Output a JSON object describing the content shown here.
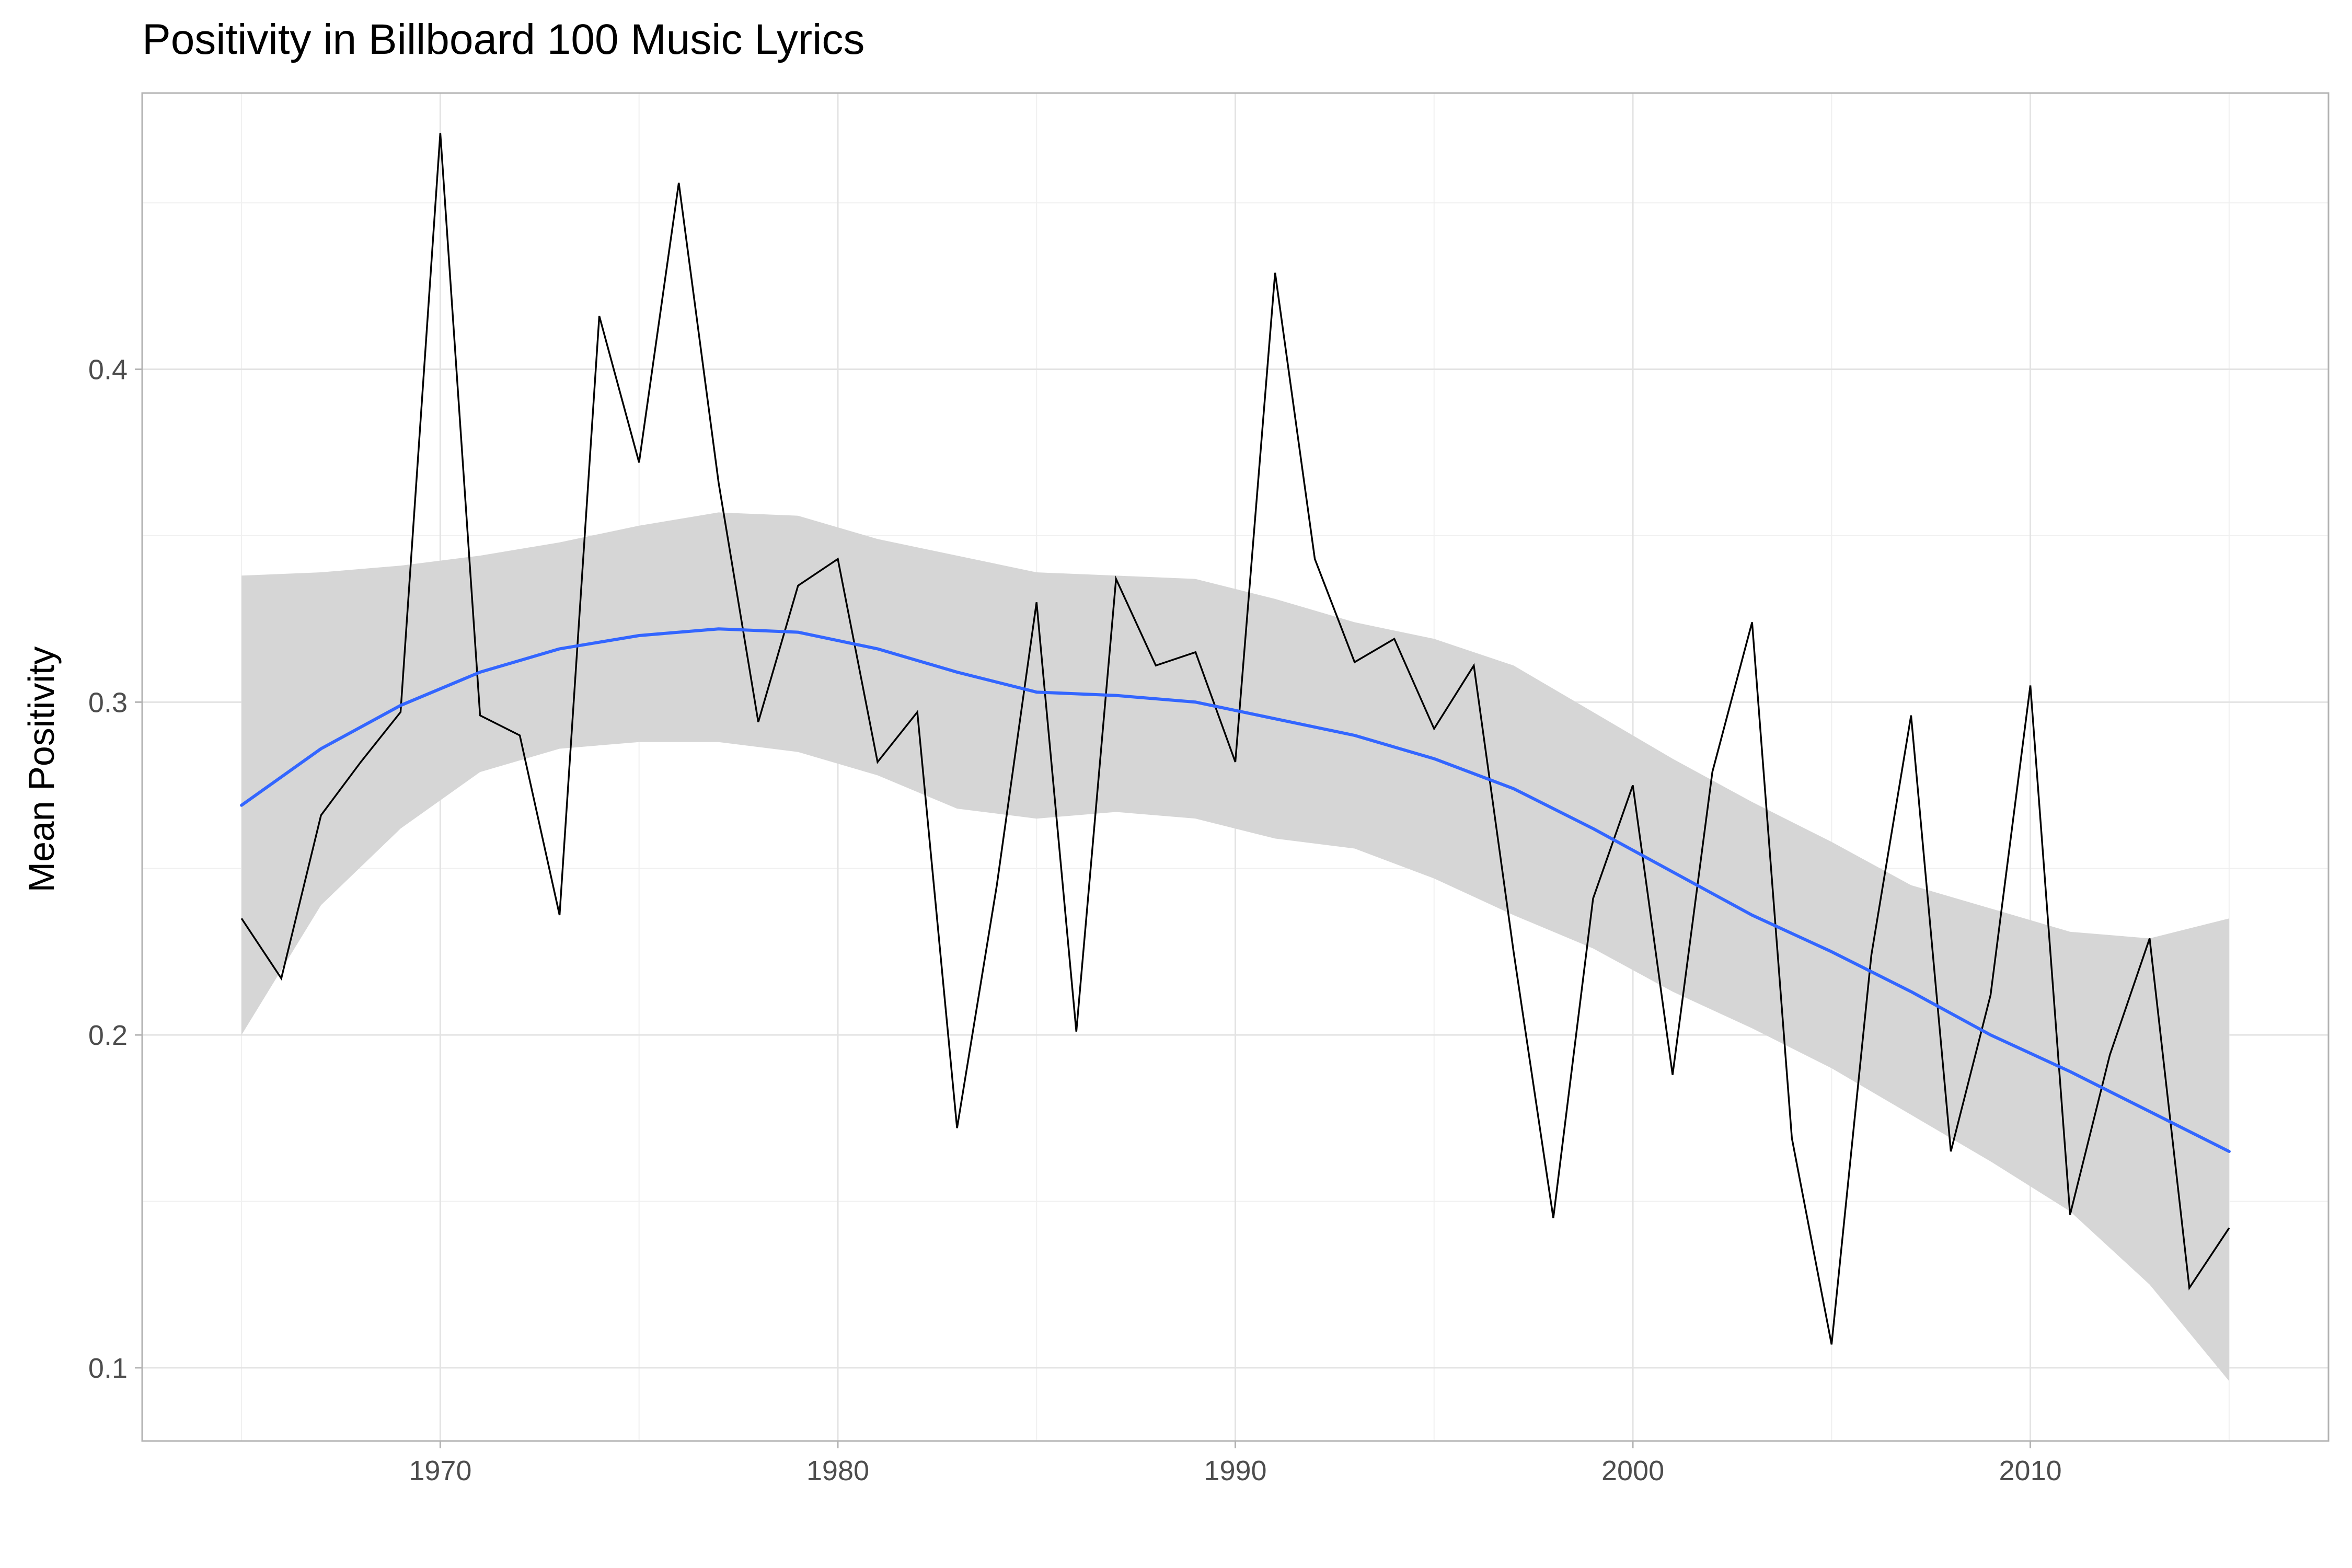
{
  "chart_data": {
    "type": "line",
    "title": "Positivity in Billboard 100 Music Lyrics",
    "xlabel": "",
    "ylabel": "Mean Positivity",
    "xlim": [
      1962.5,
      2017.5
    ],
    "ylim": [
      0.078,
      0.483
    ],
    "x_ticks": [
      1970,
      1980,
      1990,
      2000,
      2010
    ],
    "y_ticks": [
      0.1,
      0.2,
      0.3,
      0.4
    ],
    "x_tick_labels": [
      "1970",
      "1980",
      "1990",
      "2000",
      "2010"
    ],
    "y_tick_labels": [
      "0.1",
      "0.2",
      "0.3",
      "0.4"
    ],
    "grid": true,
    "legend": "none",
    "colors": {
      "line": "#000000",
      "smooth": "#3366ff",
      "ribbon": "#d6d6d6",
      "grid_major": "#e3e3e3",
      "grid_minor": "#f0f0f0",
      "panel_border": "#b3b3b3"
    },
    "series": [
      {
        "x": [
          1965,
          1966,
          1967,
          1968,
          1969,
          1970,
          1971,
          1972,
          1973,
          1974,
          1975,
          1976,
          1977,
          1978,
          1979,
          1980,
          1981,
          1982,
          1983,
          1984,
          1985,
          1986,
          1987,
          1988,
          1989,
          1990,
          1991,
          1992,
          1993,
          1994,
          1995,
          1996,
          1997,
          1998,
          1999,
          2000,
          2001,
          2002,
          2003,
          2004,
          2005,
          2006,
          2007,
          2008,
          2009,
          2010,
          2011,
          2012,
          2013,
          2014,
          2015
        ],
        "values": [
          0.235,
          0.217,
          0.266,
          0.282,
          0.297,
          0.471,
          0.296,
          0.29,
          0.236,
          0.416,
          0.372,
          0.456,
          0.366,
          0.294,
          0.335,
          0.343,
          0.282,
          0.297,
          0.172,
          0.245,
          0.33,
          0.201,
          0.337,
          0.311,
          0.315,
          0.282,
          0.429,
          0.343,
          0.312,
          0.319,
          0.292,
          0.311,
          0.225,
          0.145,
          0.241,
          0.275,
          0.188,
          0.279,
          0.324,
          0.169,
          0.107,
          0.224,
          0.296,
          0.165,
          0.212,
          0.305,
          0.146,
          0.194,
          0.229,
          0.124,
          0.142
        ]
      },
      {
        "type": "smooth",
        "x": [
          1965,
          1967,
          1969,
          1971,
          1973,
          1975,
          1977,
          1979,
          1981,
          1983,
          1985,
          1987,
          1989,
          1991,
          1993,
          1995,
          1997,
          1999,
          2001,
          2003,
          2005,
          2007,
          2009,
          2011,
          2013,
          2015
        ],
        "values": [
          0.269,
          0.286,
          0.299,
          0.309,
          0.316,
          0.32,
          0.322,
          0.321,
          0.316,
          0.309,
          0.303,
          0.302,
          0.3,
          0.295,
          0.29,
          0.283,
          0.274,
          0.262,
          0.249,
          0.236,
          0.225,
          0.213,
          0.2,
          0.189,
          0.177,
          0.165
        ],
        "lower": [
          0.2,
          0.239,
          0.262,
          0.279,
          0.286,
          0.288,
          0.288,
          0.285,
          0.278,
          0.268,
          0.265,
          0.267,
          0.265,
          0.259,
          0.256,
          0.247,
          0.236,
          0.226,
          0.213,
          0.202,
          0.19,
          0.176,
          0.162,
          0.147,
          0.125,
          0.096
        ],
        "upper": [
          0.338,
          0.339,
          0.341,
          0.344,
          0.348,
          0.353,
          0.357,
          0.356,
          0.349,
          0.344,
          0.339,
          0.338,
          0.337,
          0.331,
          0.324,
          0.319,
          0.311,
          0.297,
          0.283,
          0.27,
          0.258,
          0.245,
          0.238,
          0.231,
          0.229,
          0.235
        ]
      }
    ]
  }
}
